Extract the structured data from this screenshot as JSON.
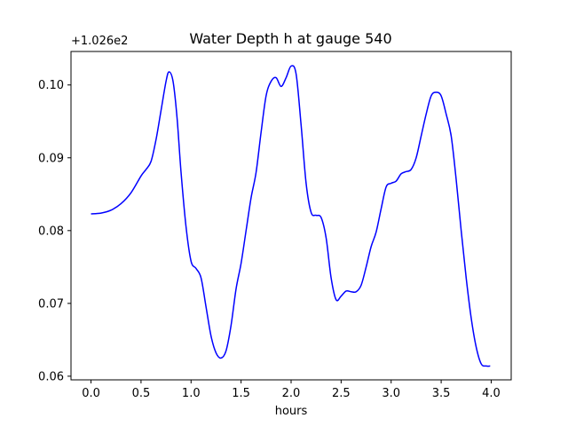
{
  "chart_data": {
    "type": "line",
    "title": "Water Depth h at gauge 540",
    "xlabel": "hours",
    "ylabel": "",
    "y_offset_label": "+1.026e2",
    "xlim": [
      -0.2,
      4.2
    ],
    "ylim": [
      0.0595,
      0.1046
    ],
    "x_ticks": [
      0.0,
      0.5,
      1.0,
      1.5,
      2.0,
      2.5,
      3.0,
      3.5,
      4.0
    ],
    "x_tick_labels": [
      "0.0",
      "0.5",
      "1.0",
      "1.5",
      "2.0",
      "2.5",
      "3.0",
      "3.5",
      "4.0"
    ],
    "y_ticks": [
      0.06,
      0.07,
      0.08,
      0.09,
      0.1
    ],
    "y_tick_labels": [
      "0.06",
      "0.07",
      "0.08",
      "0.09",
      "0.10"
    ],
    "grid": false,
    "legend": "none",
    "series": [
      {
        "color": "#0000ff",
        "x": [
          0.0,
          0.1,
          0.2,
          0.3,
          0.4,
          0.5,
          0.55,
          0.6,
          0.65,
          0.7,
          0.75,
          0.78,
          0.82,
          0.86,
          0.9,
          0.95,
          1.0,
          1.05,
          1.1,
          1.15,
          1.2,
          1.25,
          1.3,
          1.35,
          1.4,
          1.45,
          1.5,
          1.55,
          1.6,
          1.65,
          1.7,
          1.75,
          1.8,
          1.85,
          1.9,
          1.95,
          2.0,
          2.05,
          2.1,
          2.15,
          2.2,
          2.25,
          2.3,
          2.35,
          2.4,
          2.45,
          2.5,
          2.55,
          2.6,
          2.65,
          2.7,
          2.75,
          2.8,
          2.85,
          2.9,
          2.95,
          3.0,
          3.05,
          3.1,
          3.15,
          3.2,
          3.25,
          3.3,
          3.35,
          3.4,
          3.45,
          3.5,
          3.55,
          3.6,
          3.65,
          3.7,
          3.75,
          3.8,
          3.85,
          3.9,
          3.95,
          3.99
        ],
        "y": [
          0.0823,
          0.0824,
          0.0828,
          0.0837,
          0.0852,
          0.0875,
          0.0884,
          0.0895,
          0.0925,
          0.0965,
          0.1005,
          0.1018,
          0.1005,
          0.0955,
          0.088,
          0.0805,
          0.0758,
          0.0748,
          0.0735,
          0.0695,
          0.0655,
          0.0632,
          0.0625,
          0.0635,
          0.067,
          0.072,
          0.0755,
          0.08,
          0.0845,
          0.088,
          0.0935,
          0.0985,
          0.1005,
          0.101,
          0.0998,
          0.101,
          0.1026,
          0.1015,
          0.0945,
          0.0865,
          0.0825,
          0.0821,
          0.0818,
          0.079,
          0.0735,
          0.0705,
          0.071,
          0.0717,
          0.0716,
          0.0716,
          0.0725,
          0.075,
          0.0778,
          0.0798,
          0.083,
          0.086,
          0.0865,
          0.0868,
          0.0878,
          0.0881,
          0.0884,
          0.09,
          0.093,
          0.096,
          0.0985,
          0.099,
          0.0985,
          0.096,
          0.093,
          0.087,
          0.08,
          0.0735,
          0.068,
          0.064,
          0.0617,
          0.0614,
          0.0614
        ]
      }
    ]
  }
}
